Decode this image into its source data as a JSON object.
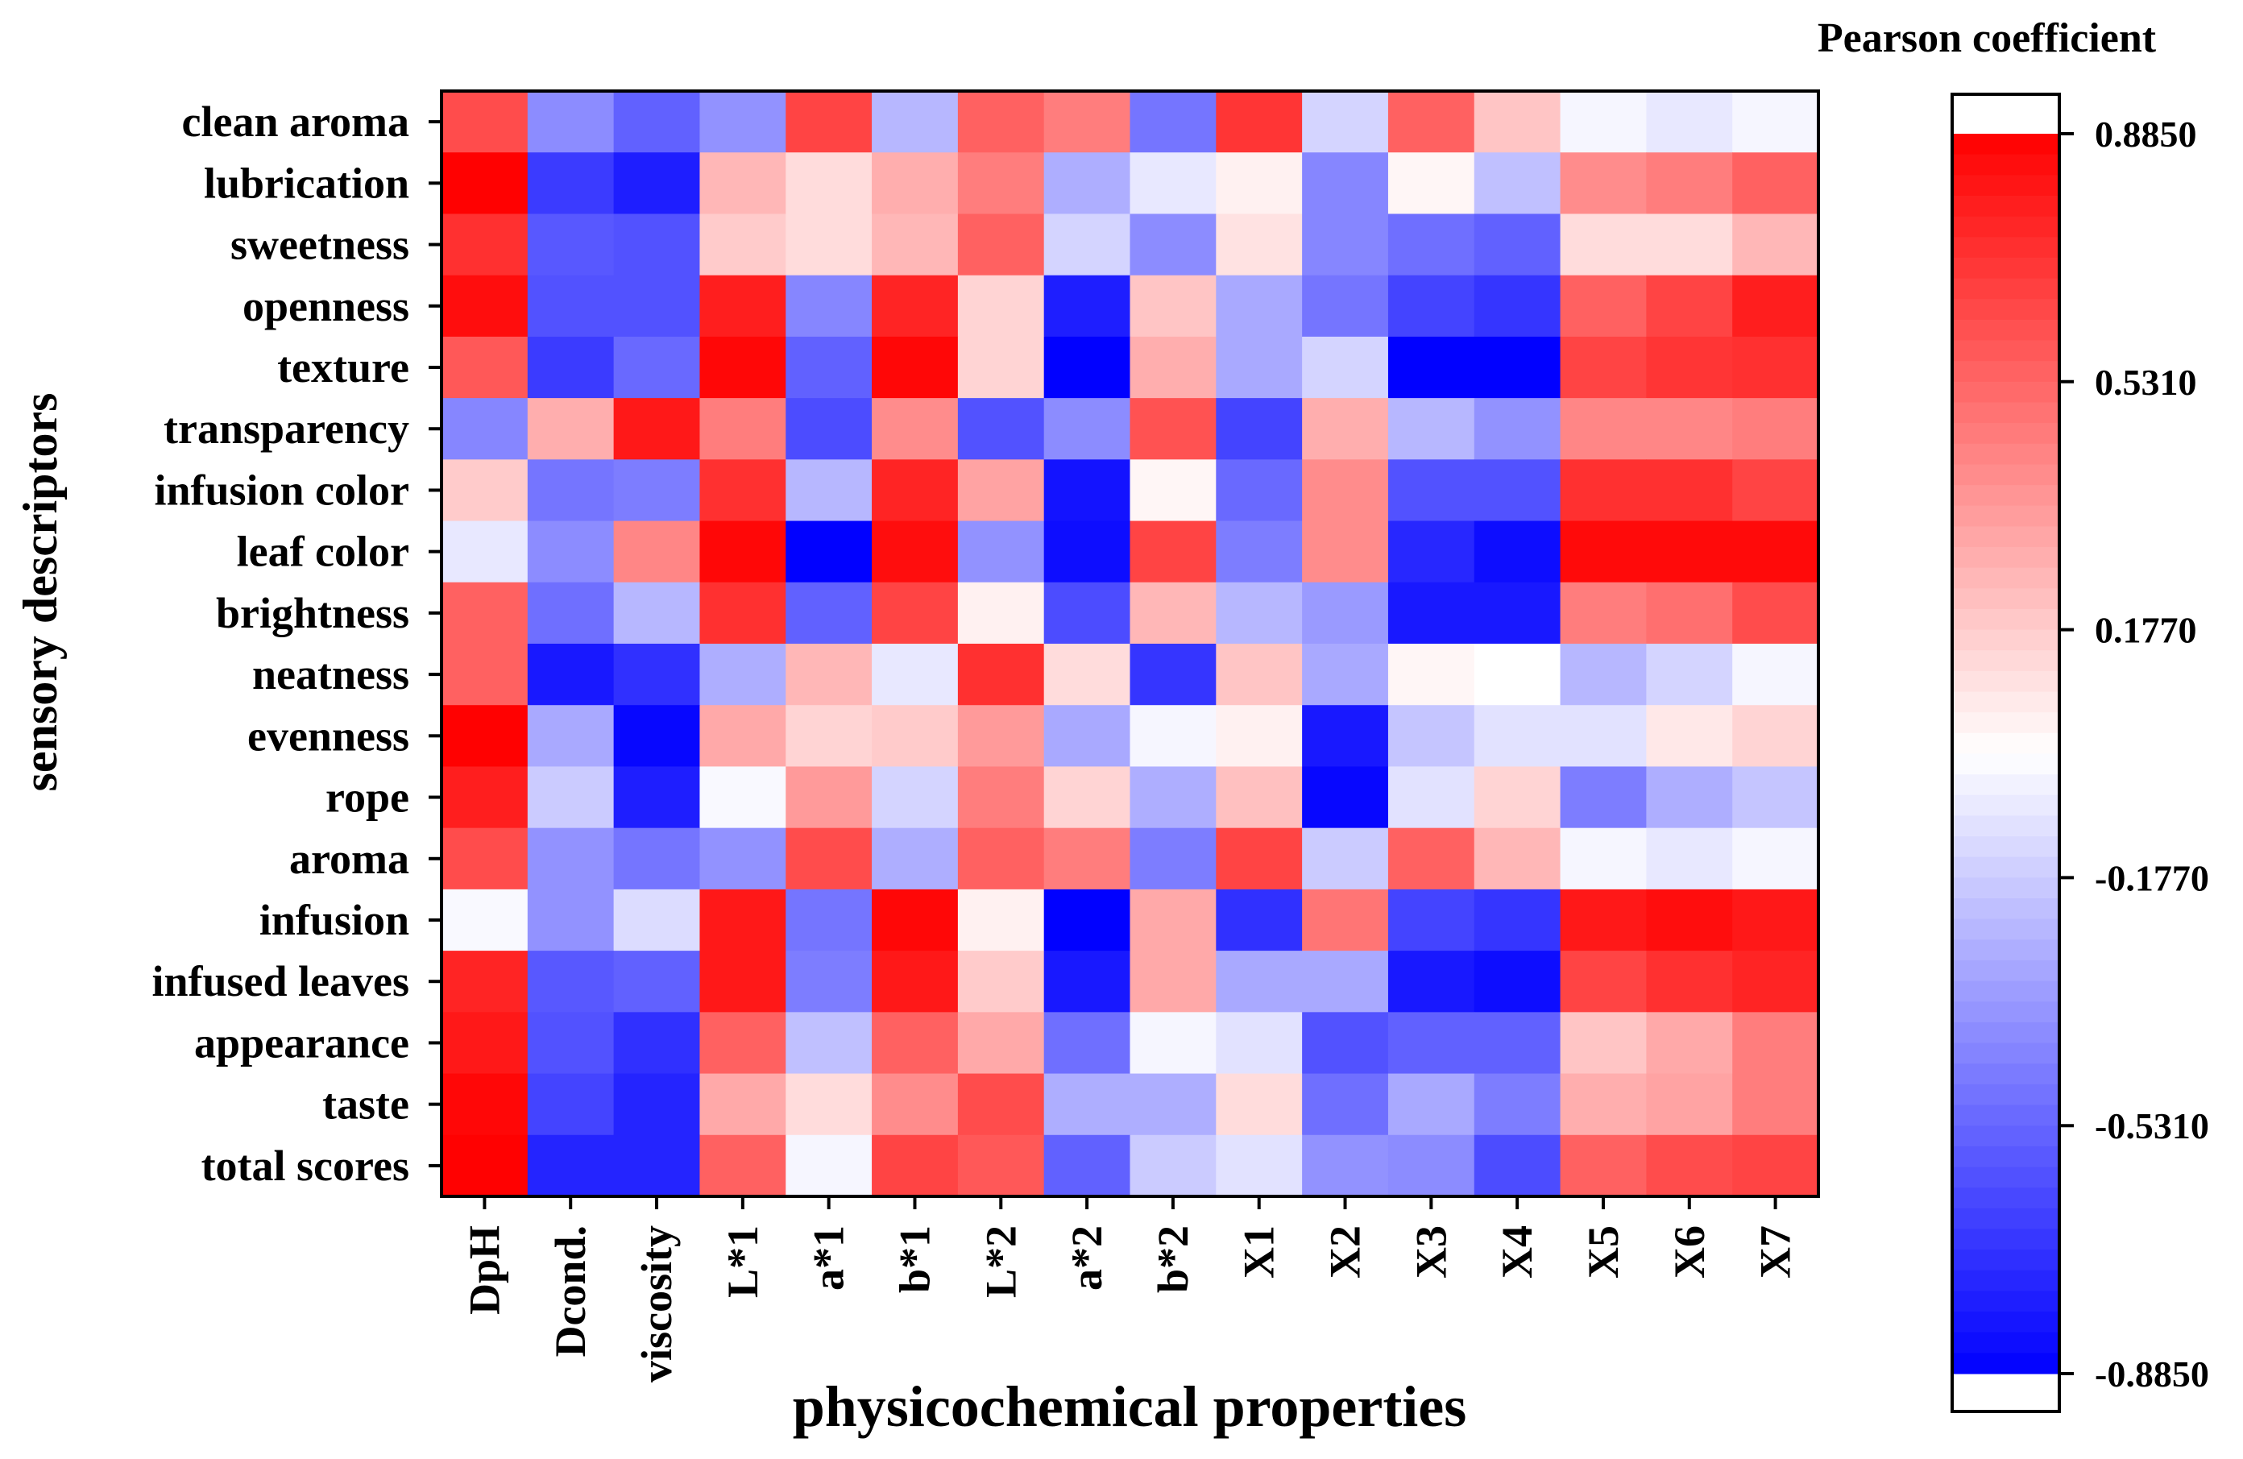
{
  "chart_data": {
    "type": "heatmap",
    "xlabel": "physicochemical properties",
    "ylabel": "sensory descriptors",
    "x_categories": [
      "DpH",
      "Dcond.",
      "viscosity",
      "L*1",
      "a*1",
      "b*1",
      "L*2",
      "a*2",
      "b*2",
      "X1",
      "X2",
      "X3",
      "X4",
      "X5",
      "X6",
      "X7"
    ],
    "y_categories": [
      "clean aroma",
      "lubrication",
      "sweetness",
      "openness",
      "texture",
      "transparency",
      "infusion color",
      "leaf color",
      "brightness",
      "neatness",
      "evenness",
      "rope",
      "aroma",
      "infusion",
      "infused leaves",
      "appearance",
      "taste",
      "total scores"
    ],
    "values": [
      [
        0.62,
        -0.4,
        -0.55,
        -0.38,
        0.65,
        -0.25,
        0.55,
        0.45,
        -0.48,
        0.7,
        -0.15,
        0.55,
        0.2,
        -0.03,
        -0.08,
        -0.03
      ],
      [
        0.88,
        -0.68,
        -0.78,
        0.25,
        0.12,
        0.28,
        0.45,
        -0.28,
        -0.08,
        0.05,
        -0.42,
        0.03,
        -0.22,
        0.4,
        0.45,
        0.55
      ],
      [
        0.72,
        -0.58,
        -0.6,
        0.18,
        0.12,
        0.25,
        0.55,
        -0.15,
        -0.4,
        0.1,
        -0.42,
        -0.5,
        -0.55,
        0.12,
        0.12,
        0.25
      ],
      [
        0.84,
        -0.6,
        -0.6,
        0.78,
        -0.42,
        0.76,
        0.15,
        -0.78,
        0.2,
        -0.3,
        -0.48,
        -0.65,
        -0.7,
        0.55,
        0.65,
        0.78
      ],
      [
        0.58,
        -0.68,
        -0.52,
        0.86,
        -0.55,
        0.86,
        0.15,
        -0.88,
        0.28,
        -0.3,
        -0.15,
        -0.88,
        -0.88,
        0.65,
        0.7,
        0.72
      ],
      [
        -0.42,
        0.28,
        0.8,
        0.45,
        -0.62,
        0.4,
        -0.6,
        -0.4,
        0.6,
        -0.65,
        0.28,
        -0.25,
        -0.38,
        0.42,
        0.42,
        0.45
      ],
      [
        0.18,
        -0.48,
        -0.45,
        0.72,
        -0.25,
        0.76,
        0.32,
        -0.82,
        0.03,
        -0.52,
        0.4,
        -0.6,
        -0.6,
        0.72,
        0.72,
        0.65
      ],
      [
        -0.08,
        -0.4,
        0.42,
        0.86,
        -0.88,
        0.84,
        -0.38,
        -0.84,
        0.65,
        -0.45,
        0.4,
        -0.75,
        -0.84,
        0.85,
        0.85,
        0.85
      ],
      [
        0.55,
        -0.5,
        -0.25,
        0.72,
        -0.55,
        0.65,
        0.05,
        -0.62,
        0.25,
        -0.25,
        -0.35,
        -0.8,
        -0.8,
        0.45,
        0.5,
        0.62
      ],
      [
        0.55,
        -0.8,
        -0.72,
        -0.28,
        0.25,
        -0.08,
        0.72,
        0.12,
        -0.7,
        0.2,
        -0.3,
        0.03,
        0.0,
        -0.25,
        -0.15,
        -0.03
      ],
      [
        0.88,
        -0.3,
        -0.86,
        0.3,
        0.15,
        0.18,
        0.35,
        -0.3,
        -0.03,
        0.05,
        -0.8,
        -0.2,
        -0.1,
        -0.1,
        0.08,
        0.15
      ],
      [
        0.78,
        -0.18,
        -0.78,
        -0.02,
        0.35,
        -0.15,
        0.45,
        0.15,
        -0.28,
        0.22,
        -0.86,
        -0.1,
        0.15,
        -0.45,
        -0.28,
        -0.2
      ],
      [
        0.62,
        -0.38,
        -0.48,
        -0.38,
        0.62,
        -0.28,
        0.55,
        0.45,
        -0.45,
        0.65,
        -0.18,
        0.55,
        0.25,
        -0.03,
        -0.08,
        -0.03
      ],
      [
        -0.02,
        -0.38,
        -0.12,
        0.8,
        -0.48,
        0.86,
        0.05,
        -0.88,
        0.3,
        -0.72,
        0.48,
        -0.65,
        -0.7,
        0.8,
        0.84,
        0.8
      ],
      [
        0.76,
        -0.58,
        -0.55,
        0.8,
        -0.45,
        0.8,
        0.18,
        -0.8,
        0.3,
        -0.3,
        -0.3,
        -0.8,
        -0.84,
        0.65,
        0.72,
        0.76
      ],
      [
        0.8,
        -0.6,
        -0.72,
        0.55,
        -0.22,
        0.55,
        0.3,
        -0.5,
        -0.03,
        -0.1,
        -0.6,
        -0.55,
        -0.55,
        0.2,
        0.3,
        0.45
      ],
      [
        0.86,
        -0.65,
        -0.76,
        0.3,
        0.12,
        0.4,
        0.62,
        -0.28,
        -0.28,
        0.12,
        -0.5,
        -0.3,
        -0.45,
        0.28,
        0.32,
        0.45
      ],
      [
        0.88,
        -0.76,
        -0.76,
        0.55,
        -0.03,
        0.65,
        0.58,
        -0.55,
        -0.18,
        -0.1,
        -0.38,
        -0.4,
        -0.62,
        0.55,
        0.62,
        0.65
      ]
    ],
    "vmin": -0.885,
    "vmax": 0.885,
    "legend": {
      "title": "Pearson coefficient",
      "ticks": [
        "0.8850",
        "0.5310",
        "0.1770",
        "-0.1770",
        "-0.5310",
        "-0.8850"
      ],
      "tick_values": [
        0.885,
        0.531,
        0.177,
        -0.177,
        -0.531,
        -0.885
      ],
      "placement": "right"
    },
    "colors": {
      "negative": "#0000ff",
      "zero": "#ffffff",
      "positive": "#ff0000"
    }
  }
}
